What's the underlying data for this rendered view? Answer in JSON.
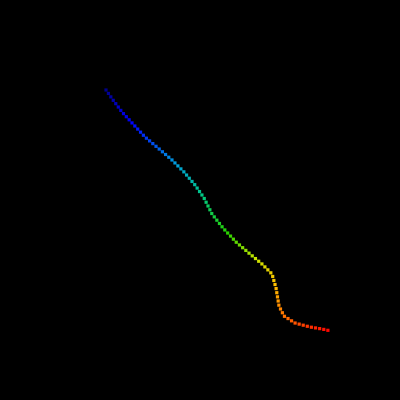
{
  "background_color": "#000000",
  "trajectory": {
    "marker_shape": "square",
    "colormap": "jet",
    "color_start": "#00008b",
    "color_end": "#ff0000"
  }
}
